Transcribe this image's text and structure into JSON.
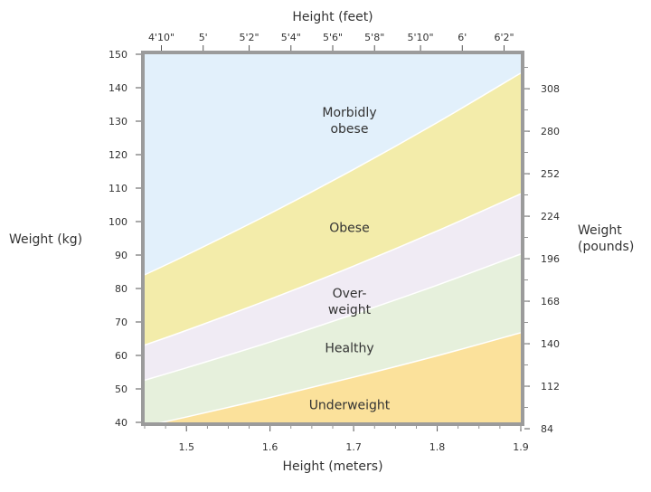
{
  "chart_data": {
    "type": "area",
    "x_axis_bottom": {
      "label": "Height (meters)",
      "range": [
        1.45,
        1.9
      ],
      "ticks": [
        1.5,
        1.6,
        1.7,
        1.8,
        1.9
      ],
      "tick_labels": [
        "1.5",
        "1.6",
        "1.7",
        "1.8",
        "1.9"
      ]
    },
    "x_axis_top": {
      "label": "Height (feet)",
      "ticks": [
        1.47,
        1.52,
        1.575,
        1.625,
        1.675,
        1.725,
        1.78,
        1.83,
        1.88
      ],
      "tick_labels": [
        "4'10\"",
        "5'",
        "5'2\"",
        "5'4\"",
        "5'6\"",
        "5'8\"",
        "5'10\"",
        "6'",
        "6'2\""
      ]
    },
    "y_axis_left": {
      "label": "Weight (kg)",
      "range": [
        40,
        150
      ],
      "ticks": [
        40,
        50,
        60,
        70,
        80,
        90,
        100,
        110,
        120,
        130,
        140,
        150
      ],
      "tick_labels": [
        "40",
        "50",
        "60",
        "70",
        "80",
        "90",
        "100",
        "110",
        "120",
        "130",
        "140",
        "150"
      ]
    },
    "y_axis_right": {
      "label": "Weight (pounds)",
      "ticks": [
        38.1,
        50.8,
        63.5,
        76.2,
        88.9,
        101.6,
        114.3,
        127.0,
        139.7
      ],
      "tick_labels": [
        "84",
        "112",
        "140",
        "168",
        "196",
        "224",
        "252",
        "280",
        "308"
      ]
    },
    "boundaries": {
      "x": [
        1.45,
        1.5,
        1.6,
        1.7,
        1.8,
        1.9
      ],
      "underweight_healthy": [
        38.9,
        41.6,
        47.4,
        53.5,
        59.9,
        66.8
      ],
      "healthy_overweight": [
        52.6,
        56.3,
        64.0,
        72.3,
        81.0,
        90.3
      ],
      "overweight_obese": [
        63.1,
        67.5,
        76.8,
        86.7,
        97.2,
        108.3
      ],
      "obese_morbidly_obese": [
        84.1,
        90.0,
        102.4,
        115.6,
        129.6,
        144.4
      ]
    },
    "regions": [
      {
        "name": "Underweight",
        "color": "#fbe19b",
        "label_x": 1.695,
        "label_y": 45
      },
      {
        "name": "Healthy",
        "color": "#e6f0dc",
        "label_x": 1.695,
        "label_y": 62
      },
      {
        "name": "Over-\nweight",
        "color": "#f0ebf4",
        "label_x": 1.695,
        "label_y": 76
      },
      {
        "name": "Obese",
        "color": "#f3ecaa",
        "label_x": 1.695,
        "label_y": 98
      },
      {
        "name": "Morbidly\nobese",
        "color": "#e2f0fb",
        "label_x": 1.695,
        "label_y": 130
      }
    ],
    "grid": false
  },
  "colors": {
    "frame": "#9b9b9b",
    "text": "#333333"
  }
}
